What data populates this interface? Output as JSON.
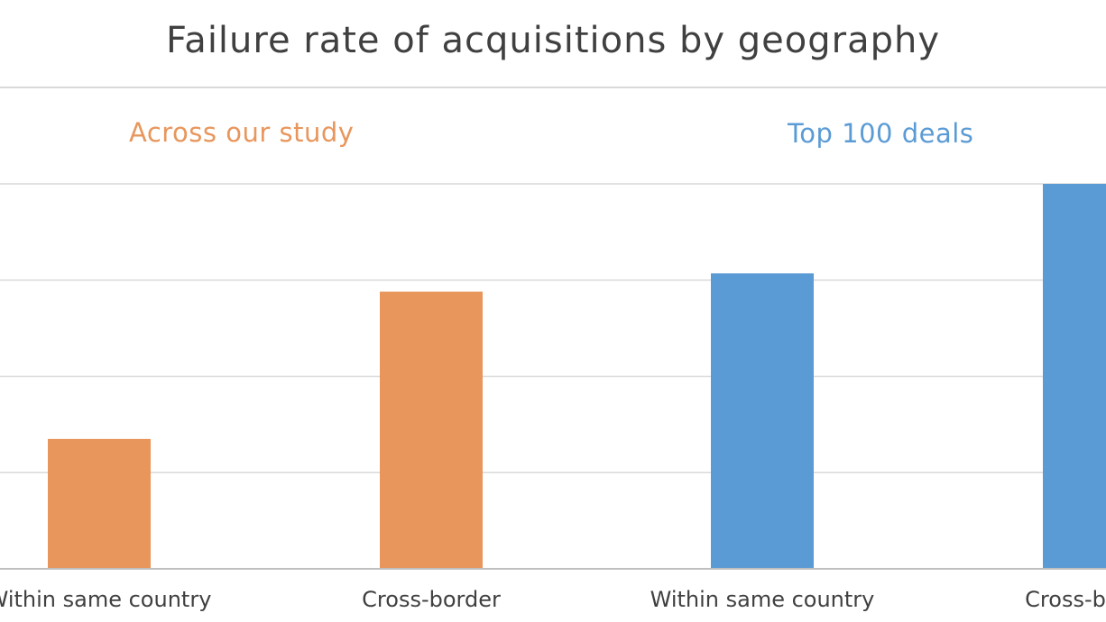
{
  "chart_data": {
    "type": "bar",
    "title": "Failure rate of acquisitions by geography",
    "groups": [
      {
        "label": "Across our study",
        "color": "#E8965C"
      },
      {
        "label": "Top 100 deals",
        "color": "#5B9BD5"
      }
    ],
    "categories": [
      "Within same country",
      "Cross-border",
      "Within same country",
      "Cross-border"
    ],
    "values": [
      1.35,
      2.88,
      3.07,
      4.0
    ],
    "bar_colors": [
      "#E8965C",
      "#E8965C",
      "#5B9BD5",
      "#5B9BD5"
    ],
    "ylim": [
      0,
      4
    ],
    "gridlines": true,
    "xlabel": "",
    "ylabel": ""
  }
}
